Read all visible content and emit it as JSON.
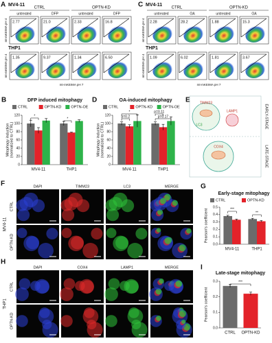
{
  "panels": {
    "A": {
      "letter": "A",
      "cell_line_1": "MV4-11",
      "cell_line_2": "THP1",
      "groups": [
        "CTRL",
        "OPTN-KD"
      ],
      "conditions": [
        "untreated",
        "DFP",
        "untreated",
        "DFP"
      ],
      "row_1": [
        "2.77",
        "21.0",
        "2.33",
        "16.8"
      ],
      "row_2": [
        "1.35",
        "9.37",
        "1.34",
        "6.50"
      ],
      "y_label": "mt-mKEIMA pH 4",
      "x_label": "mt-mKEIMA pH 7"
    },
    "C": {
      "letter": "C",
      "cell_line_1": "MV4-11",
      "cell_line_2": "THP1",
      "groups": [
        "CTRL",
        "OPTN-KD"
      ],
      "conditions": [
        "untreated",
        "OA",
        "untreated",
        "OA"
      ],
      "row_1": [
        "2.28",
        "28.2",
        "1.88",
        "15.3"
      ],
      "row_2": [
        "1.09",
        "6.02",
        "1.81",
        "3.67"
      ],
      "y_label": "mt-mKEIMA pH 4",
      "x_label": "mt-mKEIMA pH 7"
    },
    "E": {
      "letter": "E",
      "labels": [
        "TIMM23",
        "LC3",
        "LAMP1",
        "COX4"
      ],
      "stages": [
        "EARLY-STAGE",
        "LATE-STAGE"
      ]
    },
    "F": {
      "letter": "F",
      "channels": [
        "DAPI",
        "TIMM23",
        "LC3",
        "MERGE"
      ],
      "rows": [
        "CTRL",
        "OPTN-KD"
      ],
      "cell_line": "MV4-11"
    },
    "H": {
      "letter": "H",
      "channels": [
        "DAPI",
        "COX4",
        "LAMP1",
        "MERGE"
      ],
      "rows": [
        "CTRL",
        "OPTN-KD"
      ],
      "cell_line": "THP1"
    }
  },
  "chart_data": [
    {
      "type": "bar",
      "letter": "B",
      "title": "DFP induced mitophagy",
      "y_label": [
        "Mitophagy induction",
        "(normalized to CTRL)"
      ],
      "categories": [
        "MV4-11",
        "THP1"
      ],
      "series": [
        {
          "name": "CTRL",
          "color": "#6b6b6b",
          "values": [
            100,
            100
          ],
          "errors": [
            8,
            5
          ]
        },
        {
          "name": "OPTN-KD",
          "color": "#e3232a",
          "values": [
            83,
            78
          ],
          "errors": [
            7,
            1
          ]
        },
        {
          "name": "OPTN-OE",
          "color": "#2eb34a",
          "values": [
            107,
            106
          ],
          "errors": [
            5,
            3
          ]
        }
      ],
      "ylim": [
        0,
        120
      ],
      "yticks": [
        0,
        20,
        40,
        60,
        80,
        100,
        120
      ],
      "annotations": [
        "*",
        "*"
      ]
    },
    {
      "type": "bar",
      "letter": "D",
      "title": "OA-induced mitophagy",
      "y_label": [
        "Mitophagy induction",
        "(normalized to CTRL)"
      ],
      "categories": [
        "MV4-11",
        "THP1"
      ],
      "series": [
        {
          "name": "CTRL",
          "color": "#6b6b6b",
          "values": [
            100,
            100
          ],
          "errors": [
            4,
            4
          ]
        },
        {
          "name": "OPTN-KD",
          "color": "#e3232a",
          "values": [
            93,
            91
          ],
          "errors": [
            4,
            7
          ]
        },
        {
          "name": "OPTN-OE",
          "color": "#2eb34a",
          "values": [
            106,
            106
          ],
          "errors": [
            15,
            10
          ]
        }
      ],
      "ylim": [
        0,
        120
      ],
      "yticks": [
        0,
        20,
        40,
        60,
        80,
        100,
        120
      ],
      "annotations": [
        "*",
        "p=0.2",
        "p=0.11",
        "p=0.17"
      ]
    },
    {
      "type": "bar",
      "letter": "G",
      "title": "Early-stage mitophagy",
      "y_label": "Pearson's coefficient",
      "categories": [
        "MV4-11",
        "THP1"
      ],
      "series": [
        {
          "name": "CTRL",
          "color": "#6b6b6b",
          "values": [
            0.38,
            0.34
          ],
          "errors": [
            0.01,
            0.01
          ]
        },
        {
          "name": "OPTN-KD",
          "color": "#e3232a",
          "values": [
            0.33,
            0.31
          ],
          "errors": [
            0.01,
            0.01
          ]
        }
      ],
      "ylim": [
        0,
        0.5
      ],
      "yticks": [
        {
          "value": 0,
          "label": "0.0"
        },
        0.1,
        0.2,
        0.3,
        0.4,
        0.5
      ],
      "annotations": [
        "***",
        "**"
      ]
    },
    {
      "type": "bar",
      "letter": "I",
      "title": "Late-stage mitophagy",
      "y_label": "Pearson's coefficient",
      "categories": [
        "CTRL",
        "OPTN-KD"
      ],
      "values": [
        0.27,
        0.22
      ],
      "errors": [
        0.01,
        0.01
      ],
      "colors": [
        "#6b6b6b",
        "#e3232a"
      ],
      "ylim": [
        0,
        0.3
      ],
      "yticks": [
        {
          "value": 0,
          "label": "0.0"
        },
        0.1,
        0.2,
        0.3
      ],
      "annotations": [
        "***"
      ]
    }
  ]
}
